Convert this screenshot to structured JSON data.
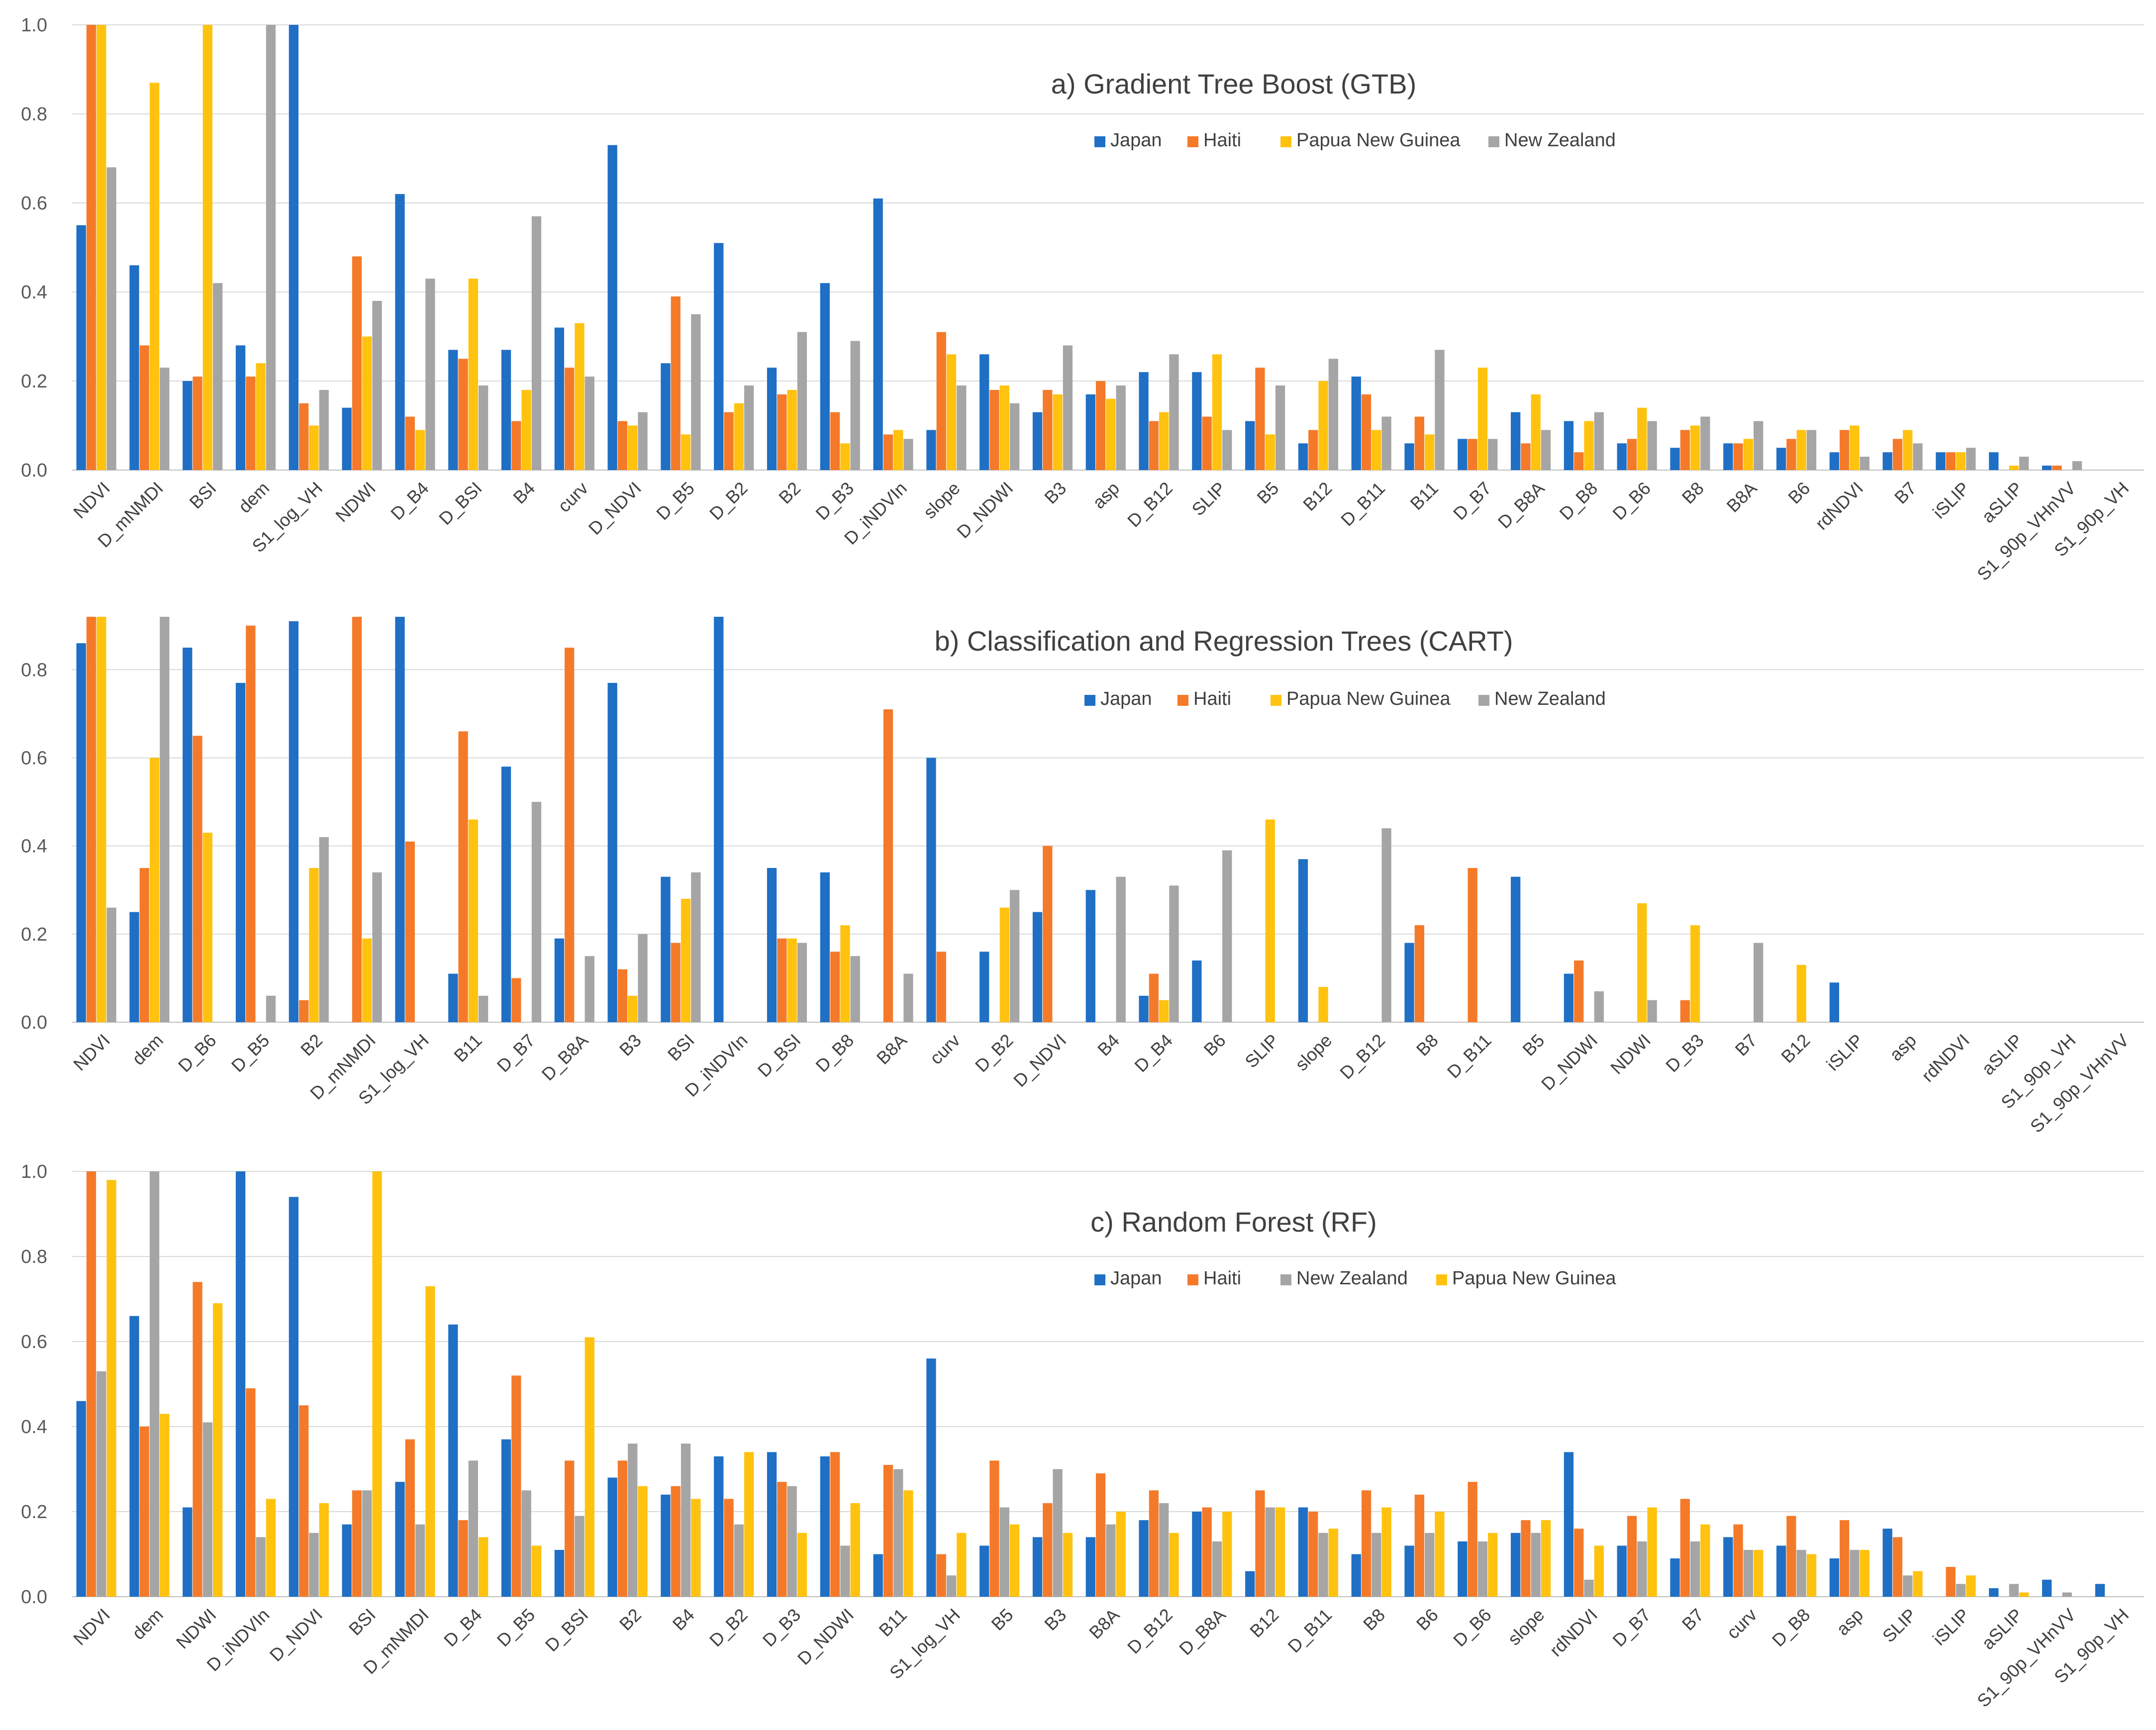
{
  "chart_data": [
    {
      "type": "bar",
      "title": "a) Gradient Tree Boost (GTB)",
      "xlabel": "",
      "ylabel": "",
      "ylim": [
        0,
        1.0
      ],
      "yticks": [
        "0.0",
        "0.2",
        "0.4",
        "0.6",
        "0.8",
        "1.0"
      ],
      "categories": [
        "NDVI",
        "D_mNMDI",
        "BSI",
        "dem",
        "S1_log_VH",
        "NDWI",
        "D_B4",
        "D_BSI",
        "B4",
        "curv",
        "D_NDVI",
        "D_B5",
        "D_B2",
        "B2",
        "D_B3",
        "D_iNDVIn",
        "slope",
        "D_NDWI",
        "B3",
        "asp",
        "D_B12",
        "SLIP",
        "B5",
        "B12",
        "D_B11",
        "B11",
        "D_B7",
        "D_B8A",
        "D_B8",
        "D_B6",
        "B8",
        "B8A",
        "B6",
        "rdNDVI",
        "B7",
        "iSLIP",
        "aSLIP",
        "S1_90p_VHnVV",
        "S1_90p_VH"
      ],
      "series": [
        {
          "name": "Japan",
          "color": "#1F6FC5",
          "values": [
            0.55,
            0.46,
            0.2,
            0.28,
            1.0,
            0.14,
            0.62,
            0.27,
            0.27,
            0.32,
            0.73,
            0.24,
            0.51,
            0.23,
            0.42,
            0.61,
            0.09,
            0.26,
            0.13,
            0.17,
            0.22,
            0.22,
            0.11,
            0.06,
            0.21,
            0.06,
            0.07,
            0.13,
            0.11,
            0.06,
            0.05,
            0.06,
            0.05,
            0.04,
            0.04,
            0.04,
            0.04,
            0.01,
            0.0
          ]
        },
        {
          "name": "Haiti",
          "color": "#F47A2A",
          "values": [
            1.0,
            0.28,
            0.21,
            0.21,
            0.15,
            0.48,
            0.12,
            0.25,
            0.11,
            0.23,
            0.11,
            0.39,
            0.13,
            0.17,
            0.13,
            0.08,
            0.31,
            0.18,
            0.18,
            0.2,
            0.11,
            0.12,
            0.23,
            0.09,
            0.17,
            0.12,
            0.07,
            0.06,
            0.04,
            0.07,
            0.09,
            0.06,
            0.07,
            0.09,
            0.07,
            0.04,
            0.0,
            0.01,
            0.0
          ]
        },
        {
          "name": "Papua New Guinea",
          "color": "#FFC20E",
          "values": [
            1.0,
            0.87,
            1.0,
            0.24,
            0.1,
            0.3,
            0.09,
            0.43,
            0.18,
            0.33,
            0.1,
            0.08,
            0.15,
            0.18,
            0.06,
            0.09,
            0.26,
            0.19,
            0.17,
            0.16,
            0.13,
            0.26,
            0.08,
            0.2,
            0.09,
            0.08,
            0.23,
            0.17,
            0.11,
            0.14,
            0.1,
            0.07,
            0.09,
            0.1,
            0.09,
            0.04,
            0.01,
            0.0,
            0.0
          ]
        },
        {
          "name": "New Zealand",
          "color": "#A5A5A5",
          "values": [
            0.68,
            0.23,
            0.42,
            1.0,
            0.18,
            0.38,
            0.43,
            0.19,
            0.57,
            0.21,
            0.13,
            0.35,
            0.19,
            0.31,
            0.29,
            0.07,
            0.19,
            0.15,
            0.28,
            0.19,
            0.26,
            0.09,
            0.19,
            0.25,
            0.12,
            0.27,
            0.07,
            0.09,
            0.13,
            0.11,
            0.12,
            0.11,
            0.09,
            0.03,
            0.06,
            0.05,
            0.03,
            0.02,
            0.0
          ]
        }
      ]
    },
    {
      "type": "bar",
      "title": "b) Classification and Regression Trees (CART)",
      "xlabel": "",
      "ylabel": "",
      "ylim": [
        0,
        0.92
      ],
      "yticks": [
        "0.0",
        "0.2",
        "0.4",
        "0.6",
        "0.8"
      ],
      "categories": [
        "NDVI",
        "dem",
        "D_B6",
        "D_B5",
        "B2",
        "D_mNMDI",
        "S1_log_VH",
        "B11",
        "D_B7",
        "D_B8A",
        "B3",
        "BSI",
        "D_iNDVIn",
        "D_BSI",
        "D_B8",
        "B8A",
        "curv",
        "D_B2",
        "D_NDVI",
        "B4",
        "D_B4",
        "B6",
        "SLIP",
        "slope",
        "D_B12",
        "B8",
        "D_B11",
        "B5",
        "D_NDWI",
        "NDWI",
        "D_B3",
        "B7",
        "B12",
        "iSLIP",
        "asp",
        "rdNDVI",
        "aSLIP",
        "S1_90p_VH",
        "S1_90p_VHnVV"
      ],
      "series": [
        {
          "name": "Japan",
          "color": "#1F6FC5",
          "values": [
            0.86,
            0.25,
            0.85,
            0.77,
            0.91,
            0.0,
            0.92,
            0.11,
            0.58,
            0.19,
            0.77,
            0.33,
            0.92,
            0.35,
            0.34,
            0.0,
            0.6,
            0.16,
            0.25,
            0.3,
            0.06,
            0.14,
            0.0,
            0.37,
            0.0,
            0.18,
            0.0,
            0.33,
            0.11,
            0.0,
            0.0,
            0.0,
            0.0,
            0.09,
            0.0,
            0.0,
            0.0,
            0.0,
            0.0
          ]
        },
        {
          "name": "Haiti",
          "color": "#F47A2A",
          "values": [
            0.92,
            0.35,
            0.65,
            0.9,
            0.05,
            0.92,
            0.41,
            0.66,
            0.1,
            0.85,
            0.12,
            0.18,
            0.0,
            0.19,
            0.16,
            0.71,
            0.16,
            0.0,
            0.4,
            0.0,
            0.11,
            0.0,
            0.0,
            0.0,
            0.0,
            0.22,
            0.35,
            0.0,
            0.14,
            0.0,
            0.05,
            0.0,
            0.0,
            0.0,
            0.0,
            0.0,
            0.0,
            0.0,
            0.0
          ]
        },
        {
          "name": "Papua New Guinea",
          "color": "#FFC20E",
          "values": [
            0.92,
            0.6,
            0.43,
            0.0,
            0.35,
            0.19,
            0.0,
            0.46,
            0.0,
            0.0,
            0.06,
            0.28,
            0.0,
            0.19,
            0.22,
            0.0,
            0.0,
            0.26,
            0.0,
            0.0,
            0.05,
            0.0,
            0.46,
            0.08,
            0.0,
            0.0,
            0.0,
            0.0,
            0.0,
            0.27,
            0.22,
            0.0,
            0.13,
            0.0,
            0.0,
            0.0,
            0.0,
            0.0,
            0.0
          ]
        },
        {
          "name": "New Zealand",
          "color": "#A5A5A5",
          "values": [
            0.26,
            0.92,
            0.0,
            0.06,
            0.42,
            0.34,
            0.0,
            0.06,
            0.5,
            0.15,
            0.2,
            0.34,
            0.0,
            0.18,
            0.15,
            0.11,
            0.0,
            0.3,
            0.0,
            0.33,
            0.31,
            0.39,
            0.0,
            0.0,
            0.44,
            0.0,
            0.0,
            0.0,
            0.07,
            0.05,
            0.0,
            0.18,
            0.0,
            0.0,
            0.0,
            0.0,
            0.0,
            0.0,
            0.0
          ]
        }
      ]
    },
    {
      "type": "bar",
      "title": "c) Random Forest (RF)",
      "xlabel": "",
      "ylabel": "",
      "ylim": [
        0,
        1.0
      ],
      "yticks": [
        "0.0",
        "0.2",
        "0.4",
        "0.6",
        "0.8",
        "1.0"
      ],
      "categories": [
        "NDVI",
        "dem",
        "NDWI",
        "D_iNDVIn",
        "D_NDVI",
        "BSI",
        "D_mNMDI",
        "D_B4",
        "D_B5",
        "D_BSI",
        "B2",
        "B4",
        "D_B2",
        "D_B3",
        "D_NDWI",
        "B11",
        "S1_log_VH",
        "B5",
        "B3",
        "B8A",
        "D_B12",
        "D_B8A",
        "B12",
        "D_B11",
        "B8",
        "B6",
        "D_B6",
        "slope",
        "rdNDVI",
        "D_B7",
        "B7",
        "curv",
        "D_B8",
        "asp",
        "SLIP",
        "iSLIP",
        "aSLIP",
        "S1_90p_VHnVV",
        "S1_90p_VH"
      ],
      "series": [
        {
          "name": "Japan",
          "color": "#1F6FC5",
          "values": [
            0.46,
            0.66,
            0.21,
            1.0,
            0.94,
            0.17,
            0.27,
            0.64,
            0.37,
            0.11,
            0.28,
            0.24,
            0.33,
            0.34,
            0.33,
            0.1,
            0.56,
            0.12,
            0.14,
            0.14,
            0.18,
            0.2,
            0.06,
            0.21,
            0.1,
            0.12,
            0.13,
            0.15,
            0.34,
            0.12,
            0.09,
            0.14,
            0.12,
            0.09,
            0.16,
            0.0,
            0.02,
            0.04,
            0.03
          ]
        },
        {
          "name": "Haiti",
          "color": "#F47A2A",
          "values": [
            1.0,
            0.4,
            0.74,
            0.49,
            0.45,
            0.25,
            0.37,
            0.18,
            0.52,
            0.32,
            0.32,
            0.26,
            0.23,
            0.27,
            0.34,
            0.31,
            0.1,
            0.32,
            0.22,
            0.29,
            0.25,
            0.21,
            0.25,
            0.2,
            0.25,
            0.24,
            0.27,
            0.18,
            0.16,
            0.19,
            0.23,
            0.17,
            0.19,
            0.18,
            0.14,
            0.07,
            0.0,
            0.0,
            0.0
          ]
        },
        {
          "name": "New Zealand",
          "color": "#A5A5A5",
          "values": [
            0.53,
            1.0,
            0.41,
            0.14,
            0.15,
            0.25,
            0.17,
            0.32,
            0.25,
            0.19,
            0.36,
            0.36,
            0.17,
            0.26,
            0.12,
            0.3,
            0.05,
            0.21,
            0.3,
            0.17,
            0.22,
            0.13,
            0.21,
            0.15,
            0.15,
            0.15,
            0.13,
            0.15,
            0.04,
            0.13,
            0.13,
            0.11,
            0.11,
            0.11,
            0.05,
            0.03,
            0.03,
            0.01,
            0.0
          ]
        },
        {
          "name": "Papua New Guinea",
          "color": "#FFC20E",
          "values": [
            0.98,
            0.43,
            0.69,
            0.23,
            0.22,
            1.0,
            0.73,
            0.14,
            0.12,
            0.61,
            0.26,
            0.23,
            0.34,
            0.15,
            0.22,
            0.25,
            0.15,
            0.17,
            0.15,
            0.2,
            0.15,
            0.2,
            0.21,
            0.16,
            0.21,
            0.2,
            0.15,
            0.18,
            0.12,
            0.21,
            0.17,
            0.11,
            0.1,
            0.11,
            0.06,
            0.05,
            0.01,
            0.0,
            0.0
          ]
        }
      ]
    }
  ]
}
